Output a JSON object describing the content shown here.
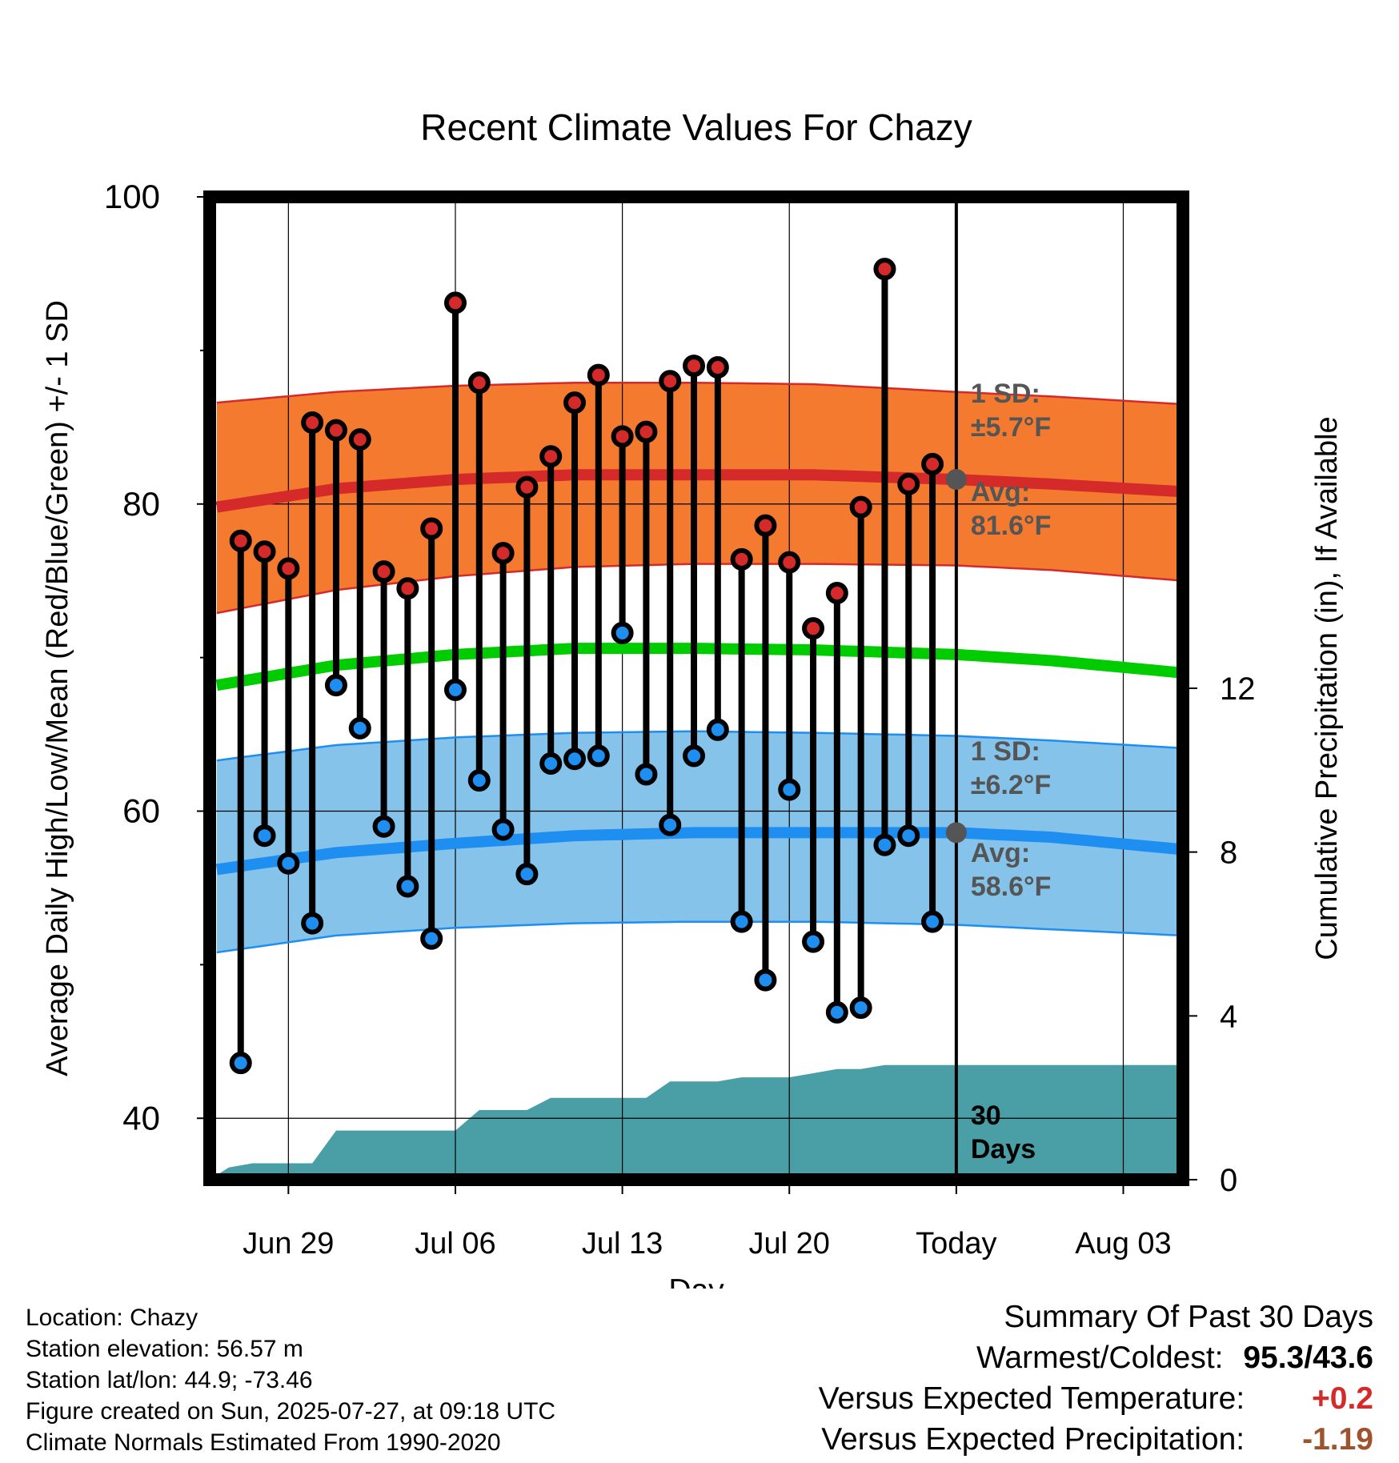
{
  "chart_data": {
    "type": "line",
    "title": "Recent Climate Values For Chazy",
    "xlabel": "Day",
    "ylabel_left": "Average Daily High/Low/Mean (Red/Blue/Green) +/- 1 SD",
    "ylabel_right": "Cumulative Precipitation (in), If Available",
    "ylim_left": [
      36,
      100
    ],
    "ylim_right": [
      0,
      24
    ],
    "y_ticks_left": [
      40,
      60,
      80,
      100
    ],
    "y_ticks_right": [
      0,
      4,
      8,
      12
    ],
    "x_ticks": [
      {
        "label": "Jun 29",
        "day": 3
      },
      {
        "label": "Jul 06",
        "day": 10
      },
      {
        "label": "Jul 13",
        "day": 17
      },
      {
        "label": "Jul 20",
        "day": 24
      },
      {
        "label": "Today",
        "day": 31
      },
      {
        "label": "Aug 03",
        "day": 38
      }
    ],
    "xlim": [
      -0.3,
      40.5
    ],
    "grid": true,
    "today_day": 31,
    "normals": {
      "days": [
        0,
        5,
        10,
        15,
        20,
        25,
        31,
        35,
        40.5
      ],
      "high_avg": [
        79.8,
        81.0,
        81.6,
        81.9,
        81.9,
        81.9,
        81.6,
        81.3,
        80.8
      ],
      "high_upper": [
        86.6,
        87.3,
        87.7,
        87.9,
        87.9,
        87.8,
        87.3,
        87.0,
        86.5
      ],
      "high_lower": [
        72.9,
        74.4,
        75.3,
        75.9,
        76.1,
        76.1,
        76.0,
        75.7,
        75.0
      ],
      "mean_avg": [
        68.2,
        69.5,
        70.2,
        70.6,
        70.6,
        70.5,
        70.2,
        69.8,
        69.0
      ],
      "low_avg": [
        56.2,
        57.3,
        57.9,
        58.4,
        58.6,
        58.6,
        58.6,
        58.3,
        57.5
      ],
      "low_upper": [
        63.3,
        64.3,
        64.8,
        65.1,
        65.2,
        65.1,
        64.9,
        64.6,
        64.1
      ],
      "low_lower": [
        50.8,
        51.9,
        52.4,
        52.7,
        52.8,
        52.8,
        52.6,
        52.3,
        51.9
      ]
    },
    "series": [
      {
        "name": "High",
        "days": [
          1,
          2,
          3,
          4,
          5,
          6,
          7,
          8,
          9,
          10,
          11,
          12,
          13,
          14,
          15,
          16,
          17,
          18,
          19,
          20,
          21,
          22,
          23,
          24,
          25,
          26,
          27,
          28,
          29,
          30
        ],
        "values": [
          77.6,
          76.9,
          75.8,
          85.3,
          84.8,
          84.2,
          75.6,
          74.5,
          78.4,
          93.1,
          87.9,
          76.8,
          81.1,
          83.1,
          86.6,
          88.4,
          84.4,
          84.7,
          88.0,
          89.0,
          88.9,
          76.4,
          78.6,
          76.2,
          71.9,
          74.2,
          79.8,
          95.3,
          81.3,
          82.6
        ]
      },
      {
        "name": "Low",
        "days": [
          1,
          2,
          3,
          4,
          5,
          6,
          7,
          8,
          9,
          10,
          11,
          12,
          13,
          14,
          15,
          16,
          17,
          18,
          19,
          20,
          21,
          22,
          23,
          24,
          25,
          26,
          27,
          28,
          29,
          30
        ],
        "values": [
          43.6,
          58.4,
          56.6,
          52.7,
          68.2,
          65.4,
          59.0,
          55.1,
          51.7,
          67.9,
          62.0,
          58.8,
          55.9,
          63.1,
          63.4,
          63.6,
          71.6,
          62.4,
          59.1,
          63.6,
          65.3,
          52.8,
          49.0,
          61.4,
          51.5,
          46.9,
          47.2,
          57.8,
          58.4,
          52.8
        ]
      }
    ],
    "precip": {
      "days": [
        -0.3,
        0.5,
        1.5,
        3,
        4,
        5,
        6,
        8,
        9,
        10,
        11,
        12,
        13,
        14,
        15,
        16,
        17,
        18,
        19,
        20,
        21,
        22,
        23,
        24,
        25,
        26,
        27,
        28,
        29,
        30,
        31,
        40.5
      ],
      "values": [
        0.0,
        0.3,
        0.4,
        0.4,
        0.4,
        1.2,
        1.2,
        1.2,
        1.2,
        1.2,
        1.7,
        1.7,
        1.7,
        2.0,
        2.0,
        2.0,
        2.0,
        2.0,
        2.4,
        2.4,
        2.4,
        2.5,
        2.5,
        2.5,
        2.6,
        2.7,
        2.7,
        2.8,
        2.8,
        2.8,
        2.8,
        2.8
      ]
    },
    "annotations": {
      "high_sd": [
        "1 SD:",
        "±5.7°F"
      ],
      "high_avg": [
        "Avg:",
        "81.6°F"
      ],
      "low_sd": [
        "1 SD:",
        "±6.2°F"
      ],
      "low_avg": [
        "Avg:",
        "58.6°F"
      ],
      "days_label": [
        "30",
        "Days"
      ]
    },
    "colors": {
      "high_band": "#f47a30",
      "high_line": "#d42a2a",
      "low_band": "#85c3ea",
      "low_line": "#1e8ef0",
      "mean_line": "#00cc00",
      "precip_fill": "#4a9ea6",
      "high_marker": "#d42a2a",
      "low_marker": "#1e8ef0",
      "annotation_text": "#555555"
    }
  },
  "footer": {
    "location": "Location: Chazy",
    "elevation": "Station elevation: 56.57 m",
    "latlon": "Station lat/lon: 44.9; -73.46",
    "created": "Figure created on Sun, 2025-07-27, at 09:18 UTC",
    "normals": "Climate Normals Estimated From 1990-2020"
  },
  "summary": {
    "title": "Summary Of Past 30 Days",
    "warmest_coldest_label": "Warmest/Coldest:",
    "warmest_coldest_value": "95.3/43.6",
    "temp_label": "Versus Expected Temperature:",
    "temp_value": "+0.2",
    "temp_color": "#d42a2a",
    "precip_label": "Versus Expected Precipitation:",
    "precip_value": "-1.19",
    "precip_color": "#a0522d"
  }
}
